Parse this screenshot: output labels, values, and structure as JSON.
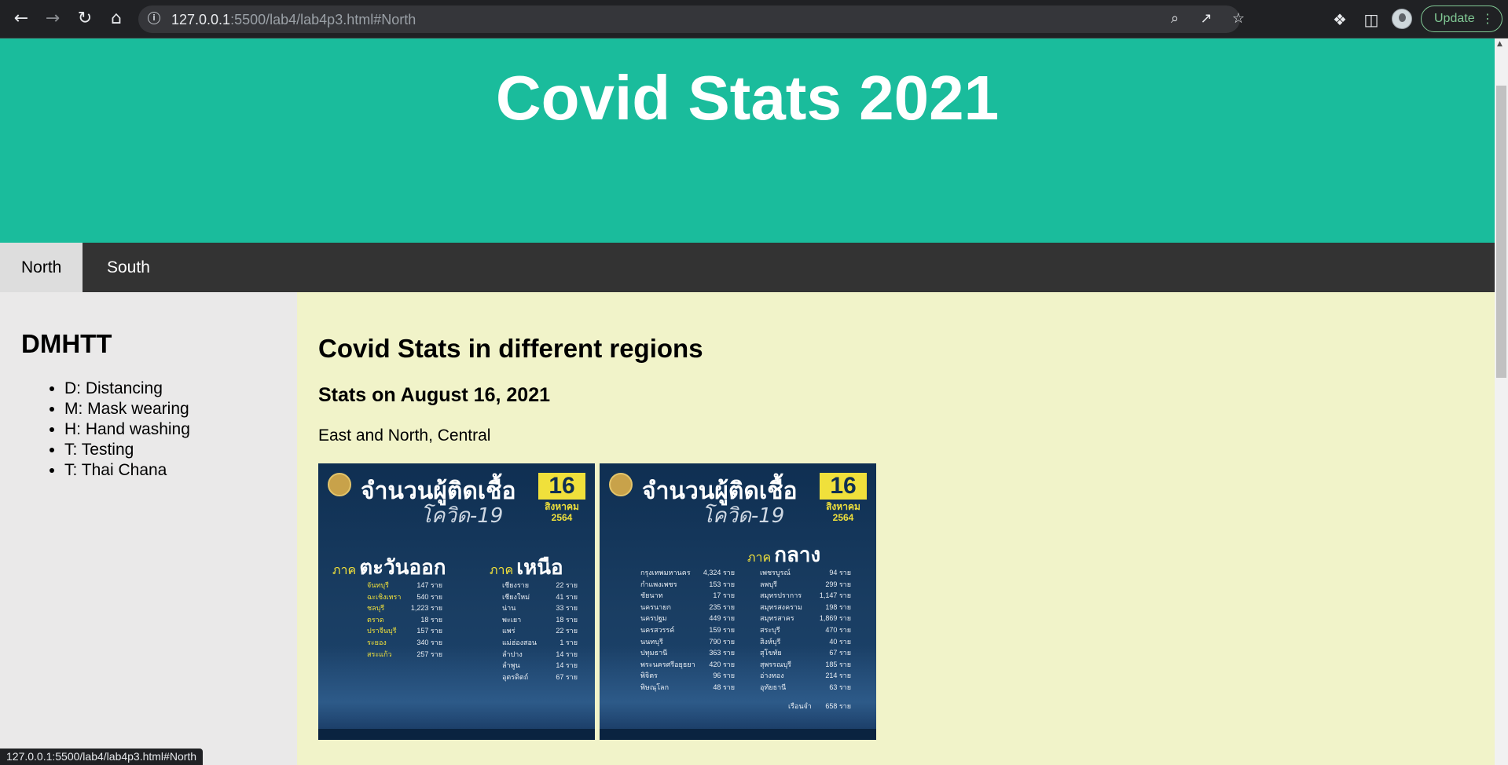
{
  "browser": {
    "url_host": "127.0.0.1",
    "url_path": ":5500/lab4/lab4p3.html#North",
    "update_label": "Update"
  },
  "header": {
    "title": "Covid Stats 2021"
  },
  "nav": {
    "tabs": [
      {
        "label": "North",
        "active": true
      },
      {
        "label": "South",
        "active": false
      }
    ]
  },
  "sidebar": {
    "title": "DMHTT",
    "items": [
      "D: Distancing",
      "M: Mask wearing",
      "H: Hand washing",
      "T: Testing",
      "T: Thai Chana"
    ]
  },
  "main": {
    "title": "Covid Stats in different regions",
    "subtitle": "Stats on August 16, 2021",
    "caption": "East and North, Central",
    "infographics": [
      {
        "title": "จำนวนผู้ติดเชื้อ",
        "subtitle": "โควิด-19",
        "day": "16",
        "month": "สิงหาคม",
        "year": "2564",
        "regions": [
          {
            "prefix": "ภาค",
            "name": "ตะวันออก",
            "rows": [
              [
                "จันทบุรี",
                "147 ราย"
              ],
              [
                "ฉะเชิงเทรา",
                "540 ราย"
              ],
              [
                "ชลบุรี",
                "1,223 ราย"
              ],
              [
                "ตราด",
                "18 ราย"
              ],
              [
                "ปราจีนบุรี",
                "157 ราย"
              ],
              [
                "ระยอง",
                "340 ราย"
              ],
              [
                "สระแก้ว",
                "257 ราย"
              ]
            ]
          },
          {
            "prefix": "ภาค",
            "name": "เหนือ",
            "rows": [
              [
                "เชียงราย",
                "22 ราย"
              ],
              [
                "เชียงใหม่",
                "41 ราย"
              ],
              [
                "น่าน",
                "33 ราย"
              ],
              [
                "พะเยา",
                "18 ราย"
              ],
              [
                "แพร่",
                "22 ราย"
              ],
              [
                "แม่ฮ่องสอน",
                "1 ราย"
              ],
              [
                "ลำปาง",
                "14 ราย"
              ],
              [
                "ลำพูน",
                "14 ราย"
              ],
              [
                "อุตรดิตถ์",
                "67 ราย"
              ]
            ]
          }
        ]
      },
      {
        "title": "จำนวนผู้ติดเชื้อ",
        "subtitle": "โควิด-19",
        "day": "16",
        "month": "สิงหาคม",
        "year": "2564",
        "regions": [
          {
            "prefix": "ภาค",
            "name": "กลาง",
            "rows_left": [
              [
                "กรุงเทพมหานคร",
                "4,324 ราย"
              ],
              [
                "กำแพงเพชร",
                "153 ราย"
              ],
              [
                "ชัยนาท",
                "17 ราย"
              ],
              [
                "นครนายก",
                "235 ราย"
              ],
              [
                "นครปฐม",
                "449 ราย"
              ],
              [
                "นครสวรรค์",
                "159 ราย"
              ],
              [
                "นนทบุรี",
                "790 ราย"
              ],
              [
                "ปทุมธานี",
                "363 ราย"
              ],
              [
                "พระนครศรีอยุธยา",
                "420 ราย"
              ],
              [
                "พิจิตร",
                "96 ราย"
              ],
              [
                "พิษณุโลก",
                "48 ราย"
              ]
            ],
            "rows_right": [
              [
                "เพชรบูรณ์",
                "94 ราย"
              ],
              [
                "ลพบุรี",
                "299 ราย"
              ],
              [
                "สมุทรปราการ",
                "1,147 ราย"
              ],
              [
                "สมุทรสงคราม",
                "198 ราย"
              ],
              [
                "สมุทรสาคร",
                "1,869 ราย"
              ],
              [
                "สระบุรี",
                "470 ราย"
              ],
              [
                "สิงห์บุรี",
                "40 ราย"
              ],
              [
                "สุโขทัย",
                "67 ราย"
              ],
              [
                "สุพรรณบุรี",
                "185 ราย"
              ],
              [
                "อ่างทอง",
                "214 ราย"
              ],
              [
                "อุทัยธานี",
                "63 ราย"
              ]
            ],
            "extra": [
              "เรือนจำ",
              "658 ราย"
            ]
          }
        ]
      }
    ]
  },
  "status_bar": {
    "text": "127.0.0.1:5500/lab4/lab4p3.html#North"
  }
}
